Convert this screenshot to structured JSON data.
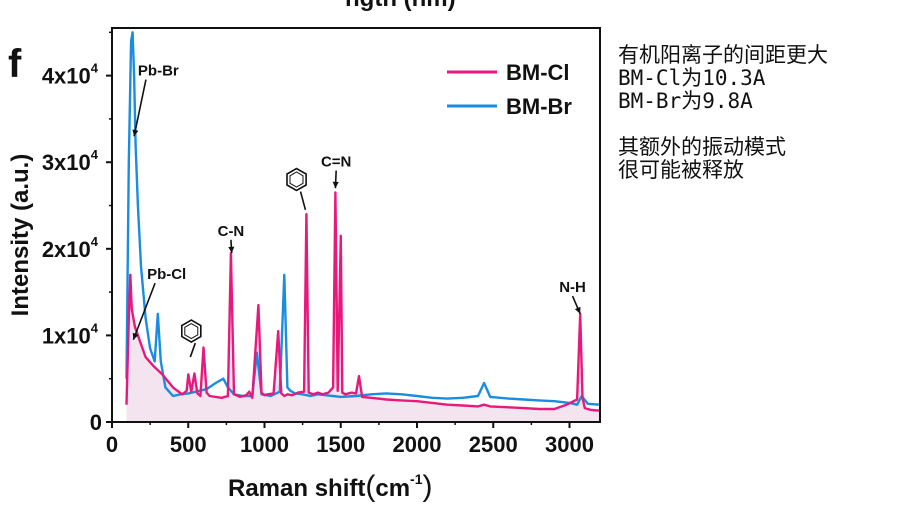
{
  "panel_letter": "f",
  "top_clipped_text": "ngth (nm)",
  "notes": {
    "line1": "有机阳离子的间距更大",
    "line2": "BM-Cl为10.3A",
    "line3": "BM-Br为9.8A",
    "line4": "其额外的振动模式",
    "line5": "很可能被释放"
  },
  "chart_data": {
    "type": "line",
    "xlabel": "Raman shift(cm-1)",
    "ylabel": "Intensity (a.u.)",
    "xlim": [
      0,
      3200
    ],
    "ylim": [
      0,
      45500
    ],
    "xticks": [
      "0",
      "500",
      "1000",
      "1500",
      "2000",
      "2500",
      "3000"
    ],
    "yticks": [
      {
        "value": 0,
        "label": "0"
      },
      {
        "value": 10000,
        "label": "1x10"
      },
      {
        "value": 20000,
        "label": "2x10"
      },
      {
        "value": 30000,
        "label": "3x10"
      },
      {
        "value": 40000,
        "label": "4x10"
      }
    ],
    "ytick_exponent": "4",
    "legend_position": "top-right",
    "series": [
      {
        "name": "BM-Cl",
        "color": "#e8197d",
        "fill": "#f3e4ef",
        "x": [
          95,
          110,
          120,
          130,
          150,
          180,
          220,
          270,
          330,
          400,
          460,
          490,
          500,
          520,
          540,
          560,
          580,
          600,
          620,
          640,
          680,
          720,
          760,
          780,
          800,
          840,
          880,
          900,
          920,
          960,
          980,
          1000,
          1020,
          1060,
          1090,
          1110,
          1130,
          1150,
          1180,
          1220,
          1260,
          1275,
          1290,
          1320,
          1350,
          1380,
          1420,
          1450,
          1465,
          1480,
          1500,
          1510,
          1530,
          1570,
          1600,
          1620,
          1640,
          1700,
          1800,
          1900,
          2000,
          2100,
          2200,
          2300,
          2400,
          2440,
          2480,
          2600,
          2700,
          2800,
          2900,
          2980,
          3050,
          3070,
          3085,
          3100,
          3140,
          3200
        ],
        "y": [
          2000,
          12000,
          17000,
          13000,
          11000,
          9500,
          7500,
          6500,
          5500,
          4000,
          3200,
          3600,
          5500,
          3500,
          5600,
          3300,
          3000,
          8600,
          3400,
          3000,
          2900,
          2800,
          3000,
          19500,
          3200,
          2900,
          3100,
          3500,
          2800,
          13500,
          3400,
          3100,
          3200,
          3300,
          10500,
          3300,
          3000,
          3200,
          3100,
          3400,
          3500,
          24000,
          3400,
          3200,
          3400,
          3200,
          3400,
          4000,
          26500,
          3600,
          21500,
          3400,
          3200,
          3400,
          3300,
          5300,
          2900,
          2800,
          2600,
          2500,
          2400,
          2200,
          2000,
          1900,
          1800,
          2000,
          1800,
          1700,
          1600,
          1500,
          1500,
          2000,
          2600,
          12500,
          2800,
          1600,
          1400,
          1300
        ]
      },
      {
        "name": "BM-Br",
        "color": "#1a8de0",
        "fill": null,
        "x": [
          95,
          110,
          125,
          135,
          145,
          155,
          170,
          190,
          220,
          250,
          280,
          300,
          320,
          350,
          400,
          450,
          500,
          550,
          620,
          680,
          730,
          760,
          800,
          860,
          920,
          950,
          980,
          1040,
          1100,
          1130,
          1150,
          1170,
          1200,
          1250,
          1300,
          1350,
          1400,
          1450,
          1500,
          1600,
          1700,
          1800,
          1900,
          2000,
          2100,
          2200,
          2300,
          2400,
          2440,
          2480,
          2600,
          2700,
          2800,
          2900,
          3000,
          3050,
          3080,
          3120,
          3200
        ],
        "y": [
          5000,
          30000,
          44000,
          45000,
          40000,
          32000,
          25000,
          18000,
          12000,
          8500,
          7000,
          12500,
          7000,
          4000,
          3000,
          3200,
          3300,
          3500,
          3800,
          4500,
          5000,
          4000,
          3200,
          3000,
          3000,
          8000,
          3200,
          3000,
          3500,
          17000,
          4000,
          3600,
          3300,
          3200,
          3000,
          3200,
          3100,
          3000,
          2900,
          3000,
          3200,
          3300,
          3200,
          3000,
          2800,
          2700,
          2800,
          3000,
          4500,
          2900,
          2700,
          2600,
          2500,
          2400,
          2200,
          2000,
          3000,
          2100,
          2000
        ]
      }
    ],
    "annotations": [
      {
        "text": "Pb-Br",
        "x_text": 170,
        "y_text": 40000,
        "x_tip": 145,
        "y_tip": 33000,
        "type": "arrow"
      },
      {
        "text": "Pb-Cl",
        "x_text": 230,
        "y_text": 16500,
        "x_tip": 140,
        "y_tip": 9500,
        "type": "arrow"
      },
      {
        "text": "C-N",
        "x_text": 780,
        "y_text": 21500,
        "x_tip": 785,
        "y_tip": 19500,
        "type": "arrow"
      },
      {
        "text": "C=N",
        "x_text": 1470,
        "y_text": 29500,
        "x_tip": 1465,
        "y_tip": 27000,
        "type": "arrow"
      },
      {
        "text": "N-H",
        "x_text": 3020,
        "y_text": 15000,
        "x_tip": 3070,
        "y_tip": 12500,
        "type": "arrow"
      },
      {
        "text": "",
        "x_text": 1210,
        "y_text": 28000,
        "x_tip": 1275,
        "y_tip": 24500,
        "type": "benzene"
      },
      {
        "text": "",
        "x_text": 520,
        "y_text": 10500,
        "x_tip": 520,
        "y_tip": 7500,
        "type": "benzene"
      }
    ]
  }
}
